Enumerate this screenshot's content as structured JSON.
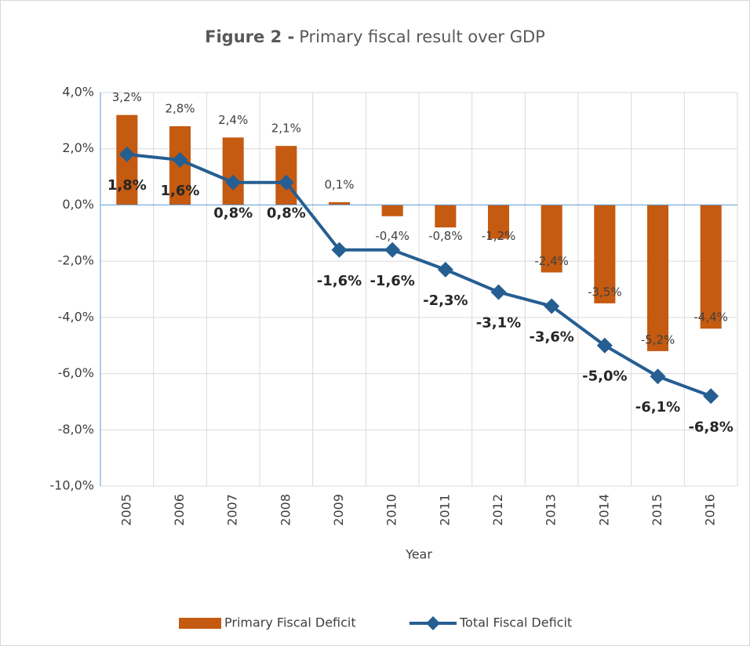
{
  "chart_data": {
    "type": "bar-line",
    "title_prefix": "Figure 2 -",
    "title": "Primary fiscal result over GDP",
    "x_label": "Year",
    "categories": [
      "2005",
      "2006",
      "2007",
      "2008",
      "2009",
      "2010",
      "2011",
      "2012",
      "2013",
      "2014",
      "2015",
      "2016"
    ],
    "series": [
      {
        "name": "Primary Fiscal Deficit",
        "type": "bar",
        "color": "#c55a11",
        "values": [
          3.2,
          2.8,
          2.4,
          2.1,
          0.1,
          -0.4,
          -0.8,
          -1.2,
          -2.4,
          -3.5,
          -5.2,
          -4.4
        ],
        "value_labels": [
          "3,2%",
          "2,8%",
          "2,4%",
          "2,1%",
          "0,1%",
          "-0,4%",
          "-0,8%",
          "-1,2%",
          "-2,4%",
          "-3,5%",
          "-5,2%",
          "-4,4%"
        ]
      },
      {
        "name": "Total Fiscal Deficit",
        "type": "line",
        "color": "#255e91",
        "values": [
          1.8,
          1.6,
          0.8,
          0.8,
          -1.6,
          -1.6,
          -2.3,
          -3.1,
          -3.6,
          -5.0,
          -6.1,
          -6.8
        ],
        "value_labels": [
          "1,8%",
          "1,6%",
          "0,8%",
          "0,8%",
          "-1,6%",
          "-1,6%",
          "-2,3%",
          "-3,1%",
          "-3,6%",
          "-5,0%",
          "-6,1%",
          "-6,8%"
        ]
      }
    ],
    "ylim": [
      -10,
      4
    ],
    "yticks": [
      {
        "value": 4,
        "label": "4,0%"
      },
      {
        "value": 2,
        "label": "2,0%"
      },
      {
        "value": 0,
        "label": "0,0%"
      },
      {
        "value": -2,
        "label": "-2,0%"
      },
      {
        "value": -4,
        "label": "-4,0%"
      },
      {
        "value": -6,
        "label": "-6,0%"
      },
      {
        "value": -8,
        "label": "-8,0%"
      },
      {
        "value": -10,
        "label": "-10,0%"
      }
    ],
    "grid": true,
    "legend": "bottom"
  }
}
